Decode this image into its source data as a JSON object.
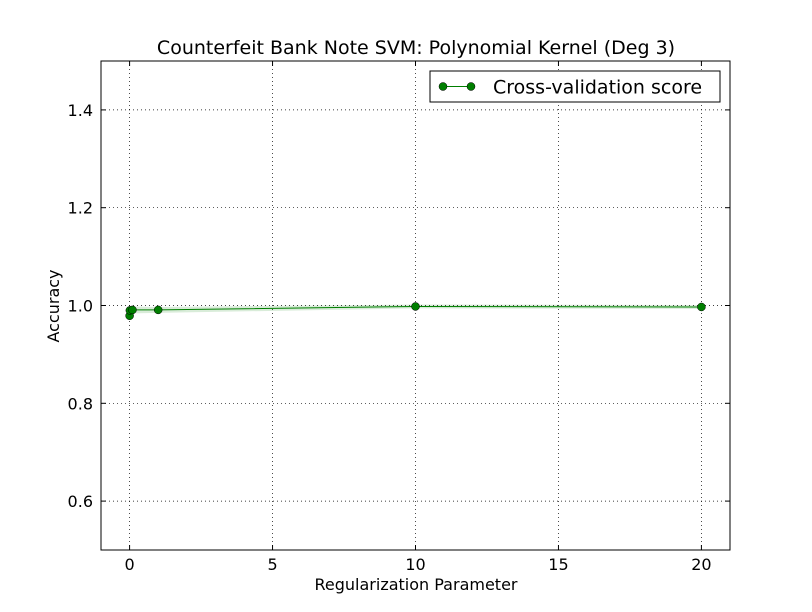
{
  "chart_data": {
    "type": "line",
    "title": "Counterfeit Bank Note SVM: Polynomial Kernel (Deg 3)",
    "xlabel": "Regularization Parameter",
    "ylabel": "Accuracy",
    "xlim": [
      -1,
      21
    ],
    "ylim": [
      0.5,
      1.5
    ],
    "xticks": [
      0,
      5,
      10,
      15,
      20
    ],
    "xtick_labels": [
      "0",
      "5",
      "10",
      "15",
      "20"
    ],
    "yticks": [
      0.6,
      0.8,
      1.0,
      1.2,
      1.4
    ],
    "ytick_labels": [
      "0.6",
      "0.8",
      "1.0",
      "1.2",
      "1.4"
    ],
    "grid": true,
    "legend_position": "top-right",
    "series": [
      {
        "name": "Cross-validation score",
        "color": "#007f00",
        "marker": "circle",
        "x": [
          0.001,
          0.01,
          0.1,
          1,
          10,
          20
        ],
        "y": [
          0.979,
          0.99,
          0.991,
          0.991,
          0.998,
          0.997
        ],
        "band_lower": [
          0.97,
          0.982,
          0.984,
          0.985,
          0.994,
          0.993
        ],
        "band_upper": [
          0.988,
          0.998,
          0.998,
          0.997,
          1.002,
          1.001
        ]
      }
    ]
  }
}
